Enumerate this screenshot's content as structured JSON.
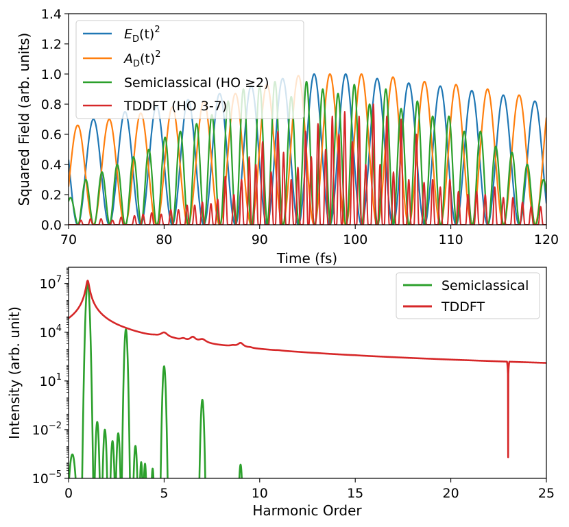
{
  "chart_data": [
    {
      "type": "line",
      "xlabel": "Time (fs)",
      "ylabel": "Squared Field (arb. units)",
      "xlim": [
        70,
        120
      ],
      "ylim": [
        0.0,
        1.4
      ],
      "xticks": [
        70,
        80,
        90,
        100,
        110,
        120
      ],
      "xtick_labels": [
        "70",
        "80",
        "90",
        "100",
        "110",
        "120"
      ],
      "yticks": [
        0.0,
        0.2,
        0.4,
        0.6,
        0.8,
        1.0,
        1.2,
        1.4
      ],
      "ytick_labels": [
        "0.0",
        "0.2",
        "0.4",
        "0.6",
        "0.8",
        "1.0",
        "1.2",
        "1.4"
      ],
      "grid": false,
      "legend_position": "top-left",
      "series": [
        {
          "key": "ed",
          "name": "E_D(t)^2",
          "legend_main": "E",
          "legend_sub": "D",
          "legend_rest": "(t)",
          "legend_sup": "2",
          "color": "#1f77b4",
          "period_fs": 3.3,
          "peak_times": [
            72.6,
            75.9,
            79.2,
            82.5,
            85.8,
            89.1,
            92.4,
            95.7,
            99.0,
            102.3,
            105.6,
            108.9,
            112.2,
            115.5,
            118.8
          ],
          "peak_values": [
            0.7,
            0.75,
            0.79,
            0.83,
            0.87,
            0.92,
            0.97,
            1.0,
            1.0,
            0.97,
            0.94,
            0.92,
            0.89,
            0.86,
            0.82
          ]
        },
        {
          "key": "ad",
          "name": "A_D(t)^2",
          "legend_main": "A",
          "legend_sub": "D",
          "legend_rest": "(t)",
          "legend_sup": "2",
          "color": "#ff7f0e",
          "period_fs": 3.3,
          "peak_times": [
            70.95,
            74.25,
            77.55,
            80.85,
            84.15,
            87.45,
            90.75,
            94.05,
            97.35,
            100.65,
            103.95,
            107.25,
            110.55,
            113.85,
            117.15
          ],
          "peak_values": [
            0.66,
            0.7,
            0.74,
            0.78,
            0.82,
            0.87,
            0.93,
            0.99,
            1.0,
            1.0,
            0.98,
            0.95,
            0.93,
            0.9,
            0.86
          ]
        },
        {
          "key": "semi",
          "name": "Semiclassical (HO ≥ 2)",
          "legend_text": "Semiclassical (HO ≥2)",
          "color": "#2ca02c",
          "peak_times": [
            70.2,
            71.8,
            73.5,
            75.1,
            76.8,
            78.4,
            80.1,
            81.7,
            83.4,
            85.0,
            86.7,
            88.3,
            90.0,
            91.6,
            93.3,
            94.9,
            96.6,
            98.2,
            99.9,
            101.5,
            103.2,
            104.8,
            106.5,
            108.1,
            109.8,
            111.4,
            113.1,
            114.7,
            116.4,
            118.0,
            119.7
          ],
          "peak_values": [
            0.18,
            0.3,
            0.35,
            0.4,
            0.45,
            0.5,
            0.58,
            0.62,
            0.67,
            0.73,
            0.82,
            0.9,
            0.92,
            0.95,
            0.85,
            0.95,
            0.9,
            0.87,
            0.93,
            0.8,
            0.9,
            0.77,
            0.82,
            0.72,
            0.72,
            0.62,
            0.62,
            0.52,
            0.48,
            0.4,
            0.3
          ]
        },
        {
          "key": "tddft",
          "name": "TDDFT (HO 3-7)",
          "legend_text": "TDDFT (HO 3-7)",
          "color": "#d62728",
          "peak_times": [
            71.3,
            72.3,
            73.4,
            74.6,
            75.5,
            76.9,
            77.8,
            78.7,
            79.7,
            80.7,
            81.5,
            82.4,
            83.2,
            84.0,
            84.9,
            85.6,
            86.4,
            87.3,
            88.1,
            88.9,
            89.6,
            90.3,
            91.2,
            91.9,
            92.5,
            93.3,
            94.0,
            94.8,
            95.4,
            96.1,
            96.9,
            97.6,
            98.3,
            98.9,
            99.7,
            100.4,
            101.1,
            101.9,
            102.6,
            103.3,
            104.0,
            104.8,
            105.6,
            106.4,
            107.2,
            108.1,
            108.9,
            109.9,
            110.8,
            111.8,
            112.7,
            113.6,
            114.6,
            115.5,
            116.5,
            117.5,
            118.4,
            119.4
          ],
          "peak_values": [
            0.03,
            0.04,
            0.04,
            0.03,
            0.05,
            0.06,
            0.07,
            0.08,
            0.07,
            0.1,
            0.1,
            0.13,
            0.13,
            0.15,
            0.14,
            0.17,
            0.32,
            0.2,
            0.3,
            0.45,
            0.4,
            0.55,
            0.35,
            0.62,
            0.48,
            0.3,
            0.38,
            0.62,
            0.45,
            0.67,
            0.5,
            0.72,
            0.6,
            0.75,
            0.55,
            0.72,
            0.4,
            0.8,
            0.4,
            0.72,
            0.35,
            0.7,
            0.3,
            0.6,
            0.28,
            0.3,
            0.25,
            0.3,
            0.22,
            0.2,
            0.22,
            0.2,
            0.25,
            0.18,
            0.18,
            0.15,
            0.12,
            0.12
          ],
          "peak_width_fs": 0.25
        }
      ]
    },
    {
      "type": "line",
      "xlabel": "Harmonic Order",
      "ylabel": "Intensity (arb. unit)",
      "xlim": [
        0,
        25
      ],
      "ylim": [
        1e-05,
        100000000.0
      ],
      "y_scale": "log",
      "xticks": [
        0,
        5,
        10,
        15,
        20,
        25
      ],
      "xtick_labels": [
        "0",
        "5",
        "10",
        "15",
        "20",
        "25"
      ],
      "yticks": [
        1e-05,
        0.01,
        10,
        10000.0,
        10000000.0
      ],
      "ytick_labels": [
        {
          "base": "10",
          "exp": "−5"
        },
        {
          "base": "10",
          "exp": "−2"
        },
        {
          "base": "10",
          "exp": "1"
        },
        {
          "base": "10",
          "exp": "4"
        },
        {
          "base": "10",
          "exp": "7"
        }
      ],
      "grid": false,
      "legend_position": "top-right",
      "series": [
        {
          "key": "semi",
          "name": "Semiclassical",
          "color": "#2ca02c",
          "peaks": [
            {
              "x": 0.2,
              "y": 0.0003,
              "width": 0.1
            },
            {
              "x": 1.0,
              "y": 10000000.0,
              "width": 0.06
            },
            {
              "x": 1.5,
              "y": 0.03,
              "width": 0.05
            },
            {
              "x": 1.9,
              "y": 0.01,
              "width": 0.05
            },
            {
              "x": 2.3,
              "y": 0.002,
              "width": 0.05
            },
            {
              "x": 2.6,
              "y": 0.006,
              "width": 0.05
            },
            {
              "x": 3.0,
              "y": 15000.0,
              "width": 0.05
            },
            {
              "x": 3.5,
              "y": 0.001,
              "width": 0.05
            },
            {
              "x": 3.8,
              "y": 0.0001,
              "width": 0.04
            },
            {
              "x": 4.0,
              "y": 8e-05,
              "width": 0.04
            },
            {
              "x": 4.4,
              "y": 4e-05,
              "width": 0.04
            },
            {
              "x": 5.0,
              "y": 80,
              "width": 0.05
            },
            {
              "x": 7.0,
              "y": 0.7,
              "width": 0.05
            },
            {
              "x": 9.0,
              "y": 7e-05,
              "width": 0.05
            }
          ],
          "floor": 1e-06
        },
        {
          "key": "tddft",
          "name": "TDDFT",
          "color": "#d62728",
          "peaks": [
            {
              "x": 1.0,
              "y": 15000000.0,
              "width": 0.07
            },
            {
              "x": 3.0,
              "y": 300.0,
              "width": 0.25
            },
            {
              "x": 3.5,
              "y": 2.0,
              "width": 0.15
            },
            {
              "x": 4.5,
              "y": 500.0,
              "width": 0.2
            },
            {
              "x": 5.0,
              "y": 5000.0,
              "width": 0.2
            },
            {
              "x": 5.5,
              "y": 200.0,
              "width": 0.15
            },
            {
              "x": 6.0,
              "y": 1000.0,
              "width": 0.15
            },
            {
              "x": 6.5,
              "y": 2500.0,
              "width": 0.15
            },
            {
              "x": 7.0,
              "y": 1500.0,
              "width": 0.2
            },
            {
              "x": 8.0,
              "y": 10,
              "width": 0.2
            },
            {
              "x": 8.6,
              "y": 200.0,
              "width": 0.15
            },
            {
              "x": 9.0,
              "y": 1000.0,
              "width": 0.15
            },
            {
              "x": 9.5,
              "y": 100.0,
              "width": 0.12
            },
            {
              "x": 10.0,
              "y": 2,
              "width": 0.15
            },
            {
              "x": 11.0,
              "y": 30,
              "width": 0.15
            },
            {
              "x": 12.0,
              "y": 2,
              "width": 0.12
            },
            {
              "x": 13.0,
              "y": 5,
              "width": 0.15
            },
            {
              "x": 14.0,
              "y": 1,
              "width": 0.12
            },
            {
              "x": 15.0,
              "y": 5,
              "width": 0.15
            },
            {
              "x": 16.0,
              "y": 0.4,
              "width": 0.12
            },
            {
              "x": 17.0,
              "y": 0.5,
              "width": 0.15
            },
            {
              "x": 18.0,
              "y": 0.2,
              "width": 0.12
            },
            {
              "x": 19.0,
              "y": 1.5,
              "width": 0.15
            },
            {
              "x": 20.0,
              "y": 0.05,
              "width": 0.12
            },
            {
              "x": 21.0,
              "y": 0.2,
              "width": 0.15
            },
            {
              "x": 23.0,
              "y": 0.0002,
              "width": 0.06
            }
          ],
          "background": 0.015
        }
      ]
    }
  ]
}
